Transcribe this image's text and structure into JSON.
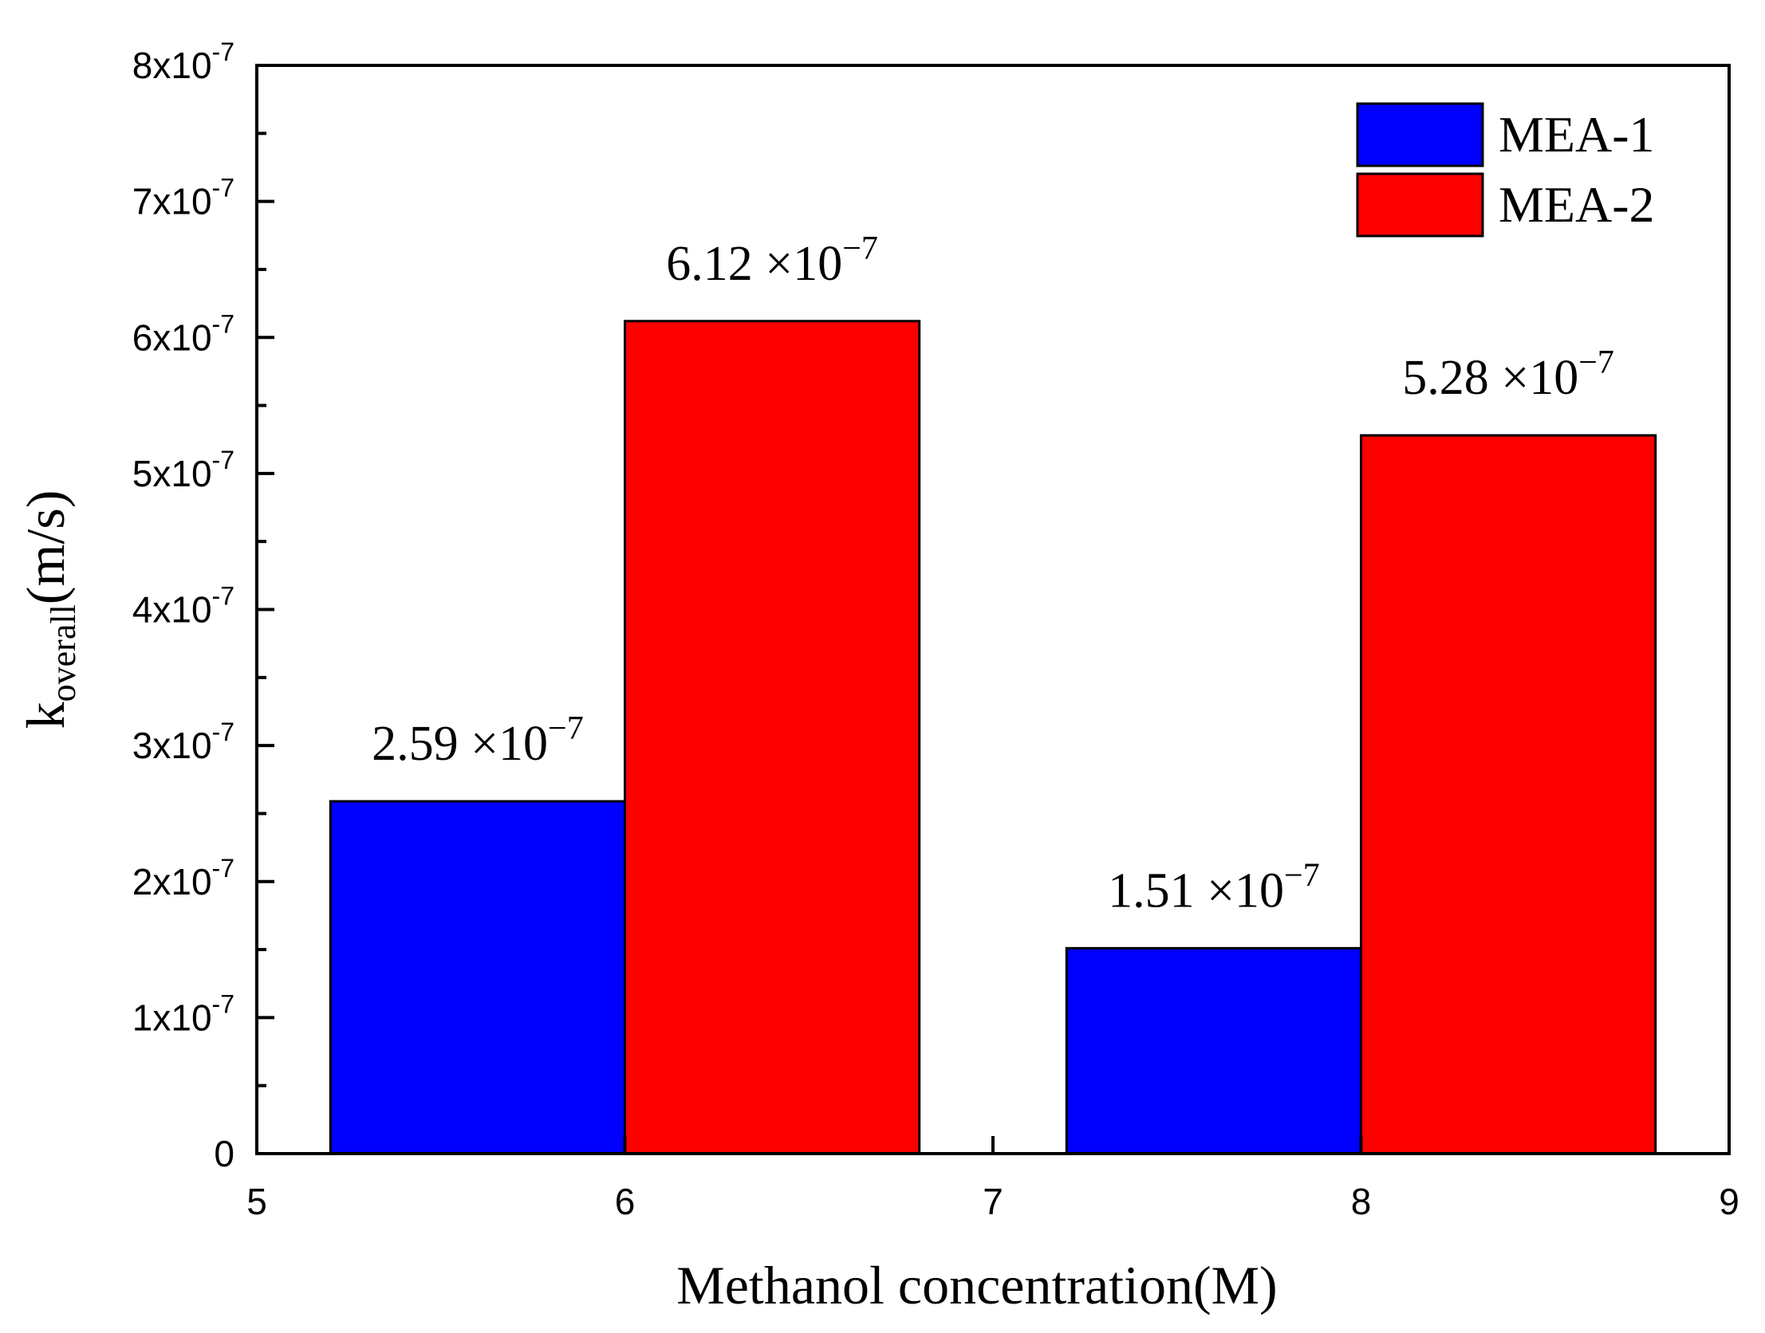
{
  "chart_data": {
    "type": "bar",
    "xlabel": "Methanol concentration(M)",
    "ylabel": {
      "main": "k",
      "subscript": "overall",
      "unit": "(m/s)"
    },
    "xlim": [
      5,
      9
    ],
    "ylim": [
      0,
      8e-07
    ],
    "x_ticks": [
      {
        "value": 5,
        "label": "5"
      },
      {
        "value": 6,
        "label": "6"
      },
      {
        "value": 7,
        "label": "7"
      },
      {
        "value": 8,
        "label": "8"
      },
      {
        "value": 9,
        "label": "9"
      }
    ],
    "y_ticks": [
      {
        "value": 0,
        "mantissa": "0",
        "exponent": ""
      },
      {
        "value": 1e-07,
        "mantissa": "1x10",
        "exponent": "-7"
      },
      {
        "value": 2e-07,
        "mantissa": "2x10",
        "exponent": "-7"
      },
      {
        "value": 3e-07,
        "mantissa": "3x10",
        "exponent": "-7"
      },
      {
        "value": 4e-07,
        "mantissa": "4x10",
        "exponent": "-7"
      },
      {
        "value": 5e-07,
        "mantissa": "5x10",
        "exponent": "-7"
      },
      {
        "value": 6e-07,
        "mantissa": "6x10",
        "exponent": "-7"
      },
      {
        "value": 7e-07,
        "mantissa": "7x10",
        "exponent": "-7"
      },
      {
        "value": 8e-07,
        "mantissa": "8x10",
        "exponent": "-7"
      }
    ],
    "bar_width": 0.8,
    "series": [
      {
        "name": "MEA-1",
        "color": "#0000ff",
        "bars": [
          {
            "x_start": 5.2,
            "value": 2.59e-07,
            "label": "2.59 ×10",
            "label_exp": "−7"
          },
          {
            "x_start": 7.2,
            "value": 1.51e-07,
            "label": "1.51 ×10",
            "label_exp": "−7"
          }
        ]
      },
      {
        "name": "MEA-2",
        "color": "#ff0000",
        "bars": [
          {
            "x_start": 6.0,
            "value": 6.12e-07,
            "label": "6.12 ×10",
            "label_exp": "−7"
          },
          {
            "x_start": 8.0,
            "value": 5.28e-07,
            "label": "5.28 ×10",
            "label_exp": "−7"
          }
        ]
      }
    ],
    "legend": {
      "position": "top-right"
    }
  }
}
